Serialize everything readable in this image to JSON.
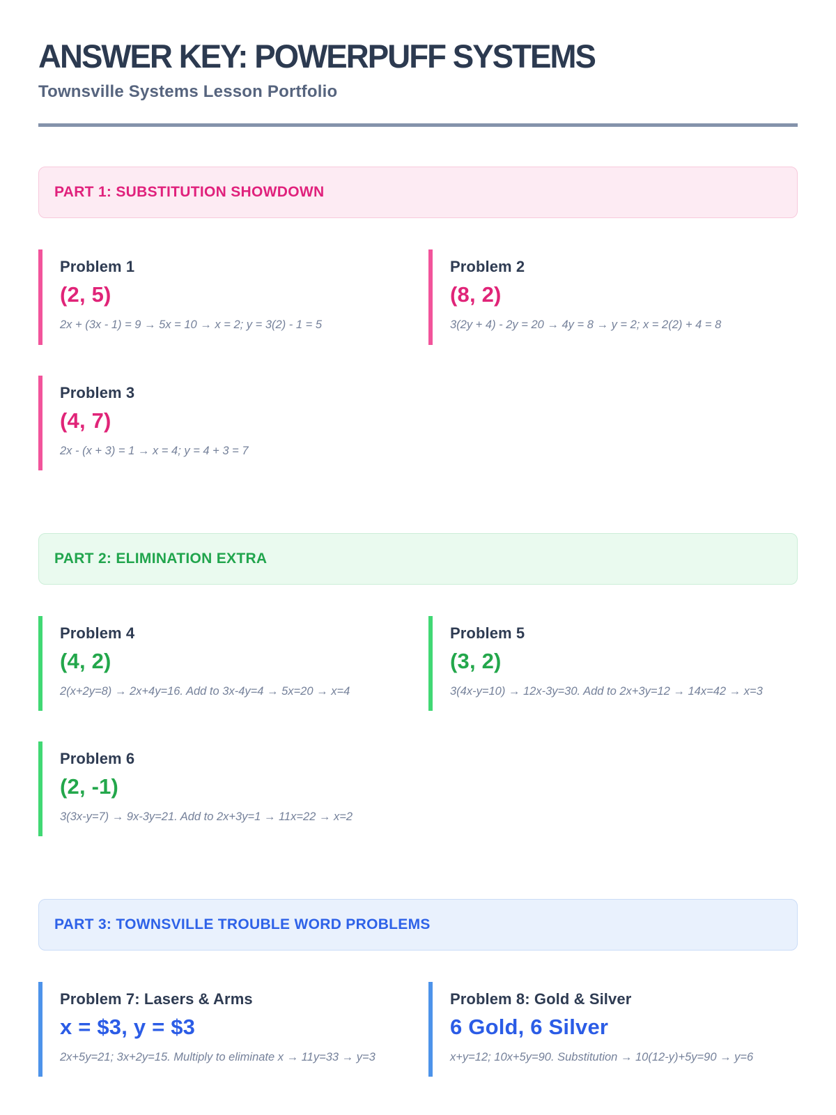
{
  "page": {
    "title": "ANSWER KEY: POWERPUFF SYSTEMS",
    "subtitle": "Townsville Systems Lesson Portfolio"
  },
  "colors": {
    "title_text": "#2c3a50",
    "subtitle_text": "#56647e",
    "divider": "#8493ab",
    "heading_text": "#2e3b52",
    "work_text": "#75819a",
    "pink_accent": "#e02478",
    "pink_border": "#f2549b",
    "pink_banner_bg": "#fdebf3",
    "green_accent": "#23a74b",
    "green_border": "#41d874",
    "green_banner_bg": "#eafaef",
    "blue_accent": "#2b5ce6",
    "blue_border": "#4d93ea",
    "blue_banner_bg": "#e9f1fd"
  },
  "sections": [
    {
      "label": "PART 1: SUBSTITUTION SHOWDOWN",
      "theme": "pink",
      "problems": [
        {
          "title": "Problem 1",
          "answer": "(2, 5)",
          "work": "2x + (3x - 1) = 9 → 5x = 10 → x = 2; y = 3(2) - 1 = 5"
        },
        {
          "title": "Problem 2",
          "answer": "(8, 2)",
          "work": "3(2y + 4) - 2y = 20 → 4y = 8 → y = 2; x = 2(2) + 4 = 8"
        },
        {
          "title": "Problem 3",
          "answer": "(4, 7)",
          "work": "2x - (x + 3) = 1 → x = 4; y = 4 + 3 = 7"
        }
      ]
    },
    {
      "label": "PART 2: ELIMINATION EXTRA",
      "theme": "green",
      "problems": [
        {
          "title": "Problem 4",
          "answer": "(4, 2)",
          "work": "2(x+2y=8) → 2x+4y=16. Add to 3x-4y=4 → 5x=20 → x=4"
        },
        {
          "title": "Problem 5",
          "answer": "(3, 2)",
          "work": "3(4x-y=10) → 12x-3y=30. Add to 2x+3y=12 → 14x=42 → x=3"
        },
        {
          "title": "Problem 6",
          "answer": "(2, -1)",
          "work": "3(3x-y=7) → 9x-3y=21. Add to 2x+3y=1 → 11x=22 → x=2"
        }
      ]
    },
    {
      "label": "PART 3: TOWNSVILLE TROUBLE WORD PROBLEMS",
      "theme": "blue",
      "problems": [
        {
          "title": "Problem 7: Lasers & Arms",
          "answer": "x = $3, y = $3",
          "work": "2x+5y=21; 3x+2y=15. Multiply to eliminate x → 11y=33 → y=3"
        },
        {
          "title": "Problem 8: Gold & Silver",
          "answer": "6 Gold, 6 Silver",
          "work": "x+y=12; 10x+5y=90. Substitution → 10(12-y)+5y=90 → y=6"
        }
      ]
    }
  ]
}
